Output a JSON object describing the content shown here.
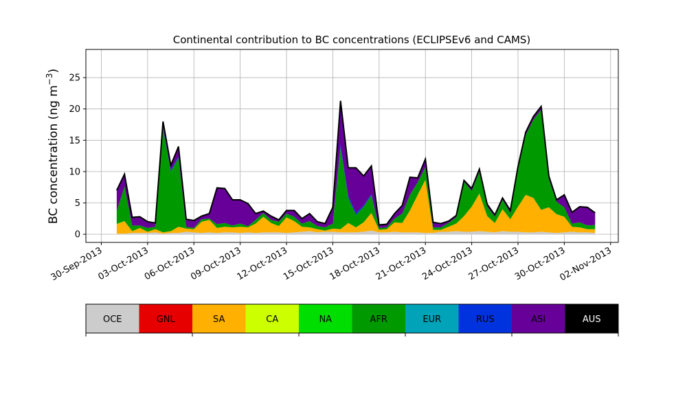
{
  "chart_data": {
    "type": "area",
    "stacked": true,
    "title": "Continental contribution to BC concentrations (ECLIPSEv6 and CAMS)",
    "ylabel": "BC concentration (ng m",
    "ylabel_sup": "−3",
    "ylabel_close": ")",
    "xlabel": "",
    "x_axis_type": "date",
    "xlim": [
      "2013-09-29T00:00",
      "2013-11-02T12:00"
    ],
    "ylim": [
      -1.3,
      29.5
    ],
    "grid": true,
    "y_ticks": [
      0,
      5,
      10,
      15,
      20,
      25
    ],
    "x_tick_labels": [
      "30-Sep-2013",
      "03-Oct-2013",
      "06-Oct-2013",
      "09-Oct-2013",
      "12-Oct-2013",
      "15-Oct-2013",
      "18-Oct-2013",
      "21-Oct-2013",
      "24-Oct-2013",
      "27-Oct-2013",
      "30-Oct-2013",
      "02-Nov-2013"
    ],
    "x_tick_dates": [
      "2013-09-30",
      "2013-10-03",
      "2013-10-06",
      "2013-10-09",
      "2013-10-12",
      "2013-10-15",
      "2013-10-18",
      "2013-10-21",
      "2013-10-24",
      "2013-10-27",
      "2013-10-30",
      "2013-11-02"
    ],
    "legend_position": "bottom colorbar",
    "categories": [
      "OCE",
      "GNL",
      "SA",
      "CA",
      "NA",
      "AFR",
      "EUR",
      "RUS",
      "ASI",
      "AUS"
    ],
    "category_colors": [
      "#cccccc",
      "#e60000",
      "#ffb000",
      "#ccff00",
      "#00dd00",
      "#009900",
      "#00a3b8",
      "#0033dd",
      "#660099",
      "#000000"
    ],
    "total_line_color": "#000000",
    "x": [
      "2013-10-01",
      "2013-10-01T12:00",
      "2013-10-02",
      "2013-10-02T12:00",
      "2013-10-03",
      "2013-10-03T12:00",
      "2013-10-04",
      "2013-10-04T12:00",
      "2013-10-05",
      "2013-10-05T12:00",
      "2013-10-06",
      "2013-10-06T12:00",
      "2013-10-07",
      "2013-10-07T12:00",
      "2013-10-08",
      "2013-10-08T12:00",
      "2013-10-09",
      "2013-10-09T12:00",
      "2013-10-10",
      "2013-10-10T12:00",
      "2013-10-11",
      "2013-10-11T12:00",
      "2013-10-12",
      "2013-10-12T12:00",
      "2013-10-13",
      "2013-10-13T12:00",
      "2013-10-14",
      "2013-10-14T12:00",
      "2013-10-15",
      "2013-10-15T12:00",
      "2013-10-16",
      "2013-10-16T12:00",
      "2013-10-17",
      "2013-10-17T12:00",
      "2013-10-18",
      "2013-10-18T12:00",
      "2013-10-19",
      "2013-10-19T12:00",
      "2013-10-20",
      "2013-10-20T12:00",
      "2013-10-21",
      "2013-10-21T12:00",
      "2013-10-22",
      "2013-10-22T12:00",
      "2013-10-23",
      "2013-10-23T12:00",
      "2013-10-24",
      "2013-10-24T12:00",
      "2013-10-25",
      "2013-10-25T12:00",
      "2013-10-26",
      "2013-10-26T12:00",
      "2013-10-27",
      "2013-10-27T12:00",
      "2013-10-28",
      "2013-10-28T12:00",
      "2013-10-29",
      "2013-10-29T12:00",
      "2013-10-30",
      "2013-10-30T12:00",
      "2013-10-31",
      "2013-10-31T12:00",
      "2013-11-01"
    ],
    "series": [
      {
        "name": "OCE",
        "values": [
          0.1,
          0.1,
          0.2,
          0.2,
          0.2,
          0.3,
          0.1,
          0.2,
          0.2,
          0.4,
          0.3,
          0.2,
          0.3,
          0.2,
          0.3,
          0.3,
          0.2,
          0.3,
          0.2,
          0.3,
          0.3,
          0.3,
          0.2,
          0.3,
          0.4,
          0.5,
          0.3,
          0.4,
          0.4,
          0.3,
          0.3,
          0.3,
          0.4,
          0.6,
          0.3,
          0.3,
          0.4,
          0.3,
          0.3,
          0.3,
          0.2,
          0.2,
          0.4,
          0.4,
          0.5,
          0.4,
          0.4,
          0.5,
          0.4,
          0.3,
          0.5,
          0.4,
          0.4,
          0.3,
          0.3,
          0.4,
          0.3,
          0.2,
          0.3,
          0.4,
          0.3,
          0.3,
          0.2
        ]
      },
      {
        "name": "GNL",
        "values": [
          0,
          0,
          0,
          0,
          0,
          0,
          0,
          0,
          0,
          0,
          0,
          0,
          0,
          0,
          0,
          0,
          0,
          0,
          0,
          0,
          0,
          0,
          0,
          0,
          0,
          0,
          0,
          0,
          0,
          0,
          0,
          0,
          0,
          0,
          0,
          0,
          0,
          0,
          0,
          0,
          0,
          0,
          0,
          0,
          0,
          0,
          0,
          0,
          0,
          0,
          0,
          0,
          0,
          0,
          0,
          0,
          0,
          0,
          0,
          0,
          0,
          0,
          0
        ]
      },
      {
        "name": "SA",
        "values": [
          1.5,
          2.0,
          0.3,
          0.8,
          0.2,
          0.5,
          0.2,
          0.3,
          1.0,
          0.5,
          0.5,
          1.8,
          2.0,
          0.8,
          0.9,
          0.8,
          1.0,
          0.8,
          1.5,
          2.5,
          1.5,
          1.0,
          2.5,
          1.8,
          0.8,
          0.6,
          0.5,
          0.2,
          0.5,
          0.5,
          1.5,
          0.8,
          1.5,
          2.8,
          0.4,
          0.5,
          1.5,
          1.5,
          3.5,
          6.0,
          8.5,
          0.5,
          0.3,
          0.8,
          1.2,
          2.5,
          4.0,
          6.0,
          2.5,
          1.5,
          3.5,
          2.0,
          4.0,
          6.0,
          5.5,
          3.5,
          4.0,
          3.0,
          2.5,
          0.8,
          0.8,
          0.5,
          0.6
        ]
      },
      {
        "name": "CA",
        "values": [
          0,
          0,
          0,
          0,
          0,
          0,
          0,
          0,
          0,
          0,
          0,
          0,
          0,
          0,
          0,
          0,
          0,
          0,
          0,
          0,
          0,
          0,
          0,
          0,
          0,
          0,
          0,
          0,
          0,
          0,
          0,
          0,
          0,
          0,
          0,
          0,
          0,
          0,
          0,
          0,
          0,
          0,
          0,
          0,
          0,
          0,
          0,
          0,
          0,
          0,
          0,
          0,
          0,
          0,
          0,
          0,
          0,
          0,
          0,
          0,
          0,
          0,
          0
        ]
      },
      {
        "name": "NA",
        "values": [
          0.1,
          0,
          0,
          0,
          0,
          0,
          0,
          0,
          0,
          0,
          0,
          0,
          0,
          0,
          0,
          0,
          0,
          0,
          0,
          0,
          0,
          0,
          0,
          0,
          0,
          0,
          0,
          0,
          0,
          0,
          0,
          0,
          0,
          0,
          0,
          0,
          0,
          0,
          0,
          0,
          0,
          0,
          0,
          0,
          0,
          0,
          0,
          0,
          0,
          0,
          0,
          0,
          0,
          0,
          0,
          0,
          0,
          0,
          0,
          0,
          0,
          0,
          0
        ]
      },
      {
        "name": "AFR",
        "values": [
          2.0,
          5.5,
          0.9,
          0.4,
          0.6,
          0.4,
          16.5,
          9.5,
          11.0,
          0.3,
          0.2,
          0.4,
          0.2,
          0.6,
          0.6,
          0.3,
          0.5,
          0.2,
          0.6,
          0.6,
          0.5,
          0.7,
          0.6,
          0.7,
          0.5,
          1.0,
          0.5,
          0.5,
          0.8,
          13.0,
          4.0,
          2.0,
          2.5,
          2.8,
          0.3,
          0.3,
          0.6,
          1.5,
          2.5,
          2.0,
          2.0,
          0.4,
          0.4,
          0.6,
          1.0,
          5.5,
          2.5,
          3.5,
          1.5,
          1.0,
          1.5,
          1.0,
          6.0,
          9.5,
          12.5,
          16.0,
          4.5,
          2.0,
          1.5,
          0.5,
          0.8,
          0.6,
          0.7
        ]
      },
      {
        "name": "EUR",
        "values": [
          0,
          0,
          0,
          0,
          0,
          0,
          0,
          0,
          0,
          0,
          0,
          0,
          0,
          0,
          0,
          0,
          0,
          0,
          0,
          0,
          0,
          0,
          0,
          0,
          0,
          0,
          0,
          0,
          0,
          0,
          0,
          0,
          0,
          0,
          0,
          0,
          0,
          0,
          0,
          0,
          0,
          0,
          0,
          0,
          0,
          0,
          0,
          0,
          0,
          0,
          0,
          0,
          0,
          0,
          0,
          0,
          0,
          0,
          0,
          0,
          0,
          0,
          0
        ]
      },
      {
        "name": "RUS",
        "values": [
          0,
          0,
          0,
          0,
          0,
          0,
          0.3,
          0.2,
          0.2,
          0,
          0,
          0,
          0,
          0,
          0,
          0,
          0,
          0,
          0,
          0,
          0,
          0,
          0,
          0,
          0,
          0,
          0,
          0,
          0,
          0.5,
          0.3,
          0.3,
          0.2,
          0.2,
          0,
          0,
          0,
          0,
          0,
          0,
          0,
          0,
          0,
          0,
          0,
          0,
          0,
          0,
          0,
          0,
          0,
          0,
          0,
          0,
          0,
          0,
          0,
          0,
          0,
          0,
          0,
          0,
          0
        ]
      },
      {
        "name": "ASI",
        "values": [
          3.3,
          2.0,
          1.3,
          1.4,
          1.0,
          0.6,
          0.9,
          0.8,
          1.6,
          1.2,
          1.2,
          0.5,
          0.8,
          5.8,
          5.5,
          4.1,
          3.8,
          3.6,
          1.0,
          0.3,
          0.6,
          0.3,
          0.5,
          1.0,
          0.8,
          1.2,
          0.7,
          0.6,
          2.6,
          7.0,
          4.5,
          7.2,
          4.7,
          4.5,
          0.5,
          0.5,
          0.8,
          1.3,
          2.8,
          0.7,
          1.3,
          0.8,
          0.6,
          0.3,
          0.3,
          0.2,
          0.4,
          0.4,
          0.4,
          0.3,
          0.3,
          0.4,
          0.4,
          0.5,
          0.5,
          0.5,
          0.5,
          0.3,
          2.0,
          1.8,
          2.5,
          2.9,
          1.9
        ]
      },
      {
        "name": "AUS",
        "values": [
          0,
          0,
          0,
          0,
          0,
          0,
          0,
          0,
          0,
          0,
          0,
          0,
          0,
          0,
          0,
          0,
          0,
          0,
          0,
          0,
          0,
          0,
          0,
          0,
          0,
          0,
          0,
          0,
          0,
          0,
          0,
          0,
          0,
          0,
          0,
          0,
          0,
          0,
          0,
          0,
          0,
          0,
          0,
          0,
          0,
          0,
          0,
          0,
          0,
          0,
          0,
          0,
          0,
          0,
          0,
          0,
          0,
          0,
          0,
          0,
          0,
          0,
          0
        ]
      }
    ]
  }
}
